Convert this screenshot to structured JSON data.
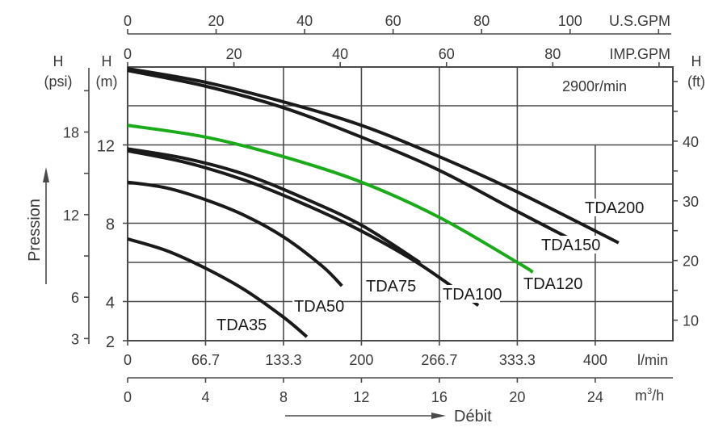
{
  "chart_data": {
    "type": "line",
    "title": "",
    "annotation": "2900r/min",
    "xlabel": "Débit",
    "ylabel": "Pression",
    "axes": {
      "x_bottom_lmin": {
        "unit": "l/min",
        "ticks": [
          "0",
          "66.7",
          "133.3",
          "200",
          "266.7",
          "333.3",
          "400"
        ]
      },
      "x_bottom_m3h": {
        "unit": "m³/h",
        "unit_base": "m",
        "unit_sup": "3",
        "unit_tail": "/h",
        "ticks": [
          "0",
          "4",
          "8",
          "12",
          "16",
          "20",
          "24"
        ]
      },
      "x_top_usgpm": {
        "unit": "U.S.GPM",
        "ticks": [
          "0",
          "20",
          "40",
          "60",
          "80",
          "100"
        ]
      },
      "x_top_impgpm": {
        "unit": "IMP.GPM",
        "ticks": [
          "0",
          "20",
          "40",
          "60",
          "80"
        ]
      },
      "y_left_m": {
        "unit_top": "H",
        "unit_bottom": "(m)",
        "ticks": [
          "2",
          "4",
          "8",
          "12"
        ]
      },
      "y_left_psi": {
        "unit_top": "H",
        "unit_bottom": "(psi)",
        "ticks": [
          "3",
          "6",
          "12",
          "18"
        ]
      },
      "y_right_ft": {
        "unit_top": "H",
        "unit_bottom": "(ft)",
        "ticks": [
          "10",
          "20",
          "30",
          "40"
        ]
      }
    },
    "xlim_m3h": [
      0,
      28
    ],
    "ylim_m": [
      2,
      16
    ],
    "grid": true,
    "series": [
      {
        "name": "TDA35",
        "color": "#1a1a1a",
        "x_m3h": [
          0,
          2,
          4,
          6,
          8,
          9.2
        ],
        "y_m": [
          7.2,
          6.6,
          5.7,
          4.6,
          3.2,
          2.2
        ]
      },
      {
        "name": "TDA50",
        "color": "#1a1a1a",
        "x_m3h": [
          0,
          2,
          4,
          6,
          8,
          10,
          11
        ],
        "y_m": [
          10.1,
          9.8,
          9.2,
          8.4,
          7.3,
          5.8,
          4.8
        ]
      },
      {
        "name": "TDA75",
        "color": "#1a1a1a",
        "x_m3h": [
          0,
          3,
          6,
          9,
          12,
          15
        ],
        "y_m": [
          11.8,
          11.3,
          10.5,
          9.3,
          7.9,
          6.0
        ]
      },
      {
        "name": "TDA100",
        "color": "#1a1a1a",
        "x_m3h": [
          0,
          3,
          6,
          9,
          12,
          15,
          18
        ],
        "y_m": [
          11.7,
          11.1,
          10.2,
          9.0,
          7.6,
          5.9,
          3.8
        ]
      },
      {
        "name": "TDA120",
        "color": "#1aaa1a",
        "x_m3h": [
          0,
          4,
          8,
          12,
          16,
          20,
          20.8
        ],
        "y_m": [
          13.0,
          12.4,
          11.4,
          10.1,
          8.3,
          6.0,
          5.5
        ]
      },
      {
        "name": "TDA150",
        "color": "#1a1a1a",
        "x_m3h": [
          0,
          4,
          8,
          12,
          16,
          20,
          23.5
        ],
        "y_m": [
          15.8,
          15.0,
          13.9,
          12.4,
          10.7,
          8.6,
          6.8
        ]
      },
      {
        "name": "TDA200",
        "color": "#1a1a1a",
        "x_m3h": [
          0,
          4,
          8,
          12,
          16,
          20,
          25.2
        ],
        "y_m": [
          15.9,
          15.2,
          14.2,
          13.0,
          11.4,
          9.6,
          7.0
        ]
      }
    ]
  }
}
